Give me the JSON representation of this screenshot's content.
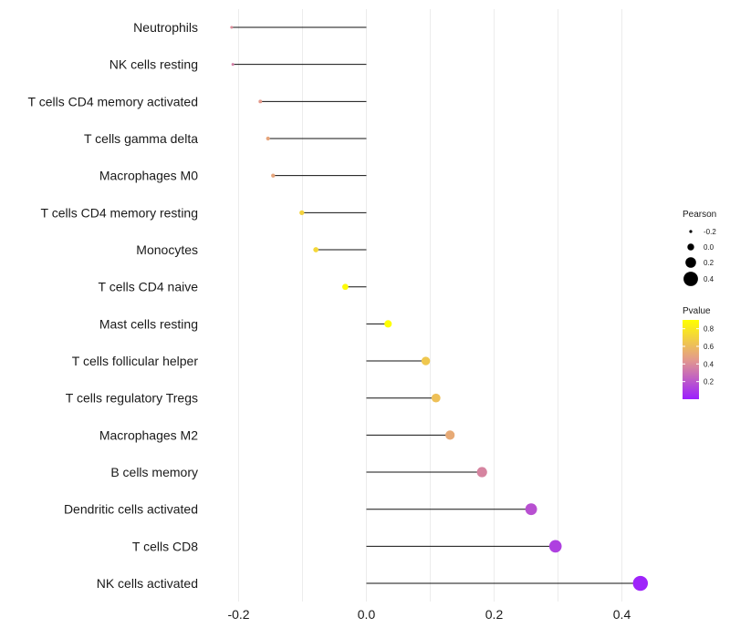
{
  "chart_data": {
    "type": "lollipop",
    "title": "",
    "xlabel": "",
    "ylabel": "",
    "xlim": [
      -0.245,
      0.455
    ],
    "x_ticks": [
      -0.2,
      0.0,
      0.2,
      0.4
    ],
    "x_tick_labels": [
      "-0.2",
      "0.0",
      "0.2",
      "0.4"
    ],
    "grid": true,
    "categories": [
      "Neutrophils",
      "NK cells resting",
      "T cells CD4 memory activated",
      "T cells gamma delta",
      "Macrophages M0",
      "T cells CD4 memory resting",
      "Monocytes",
      "T cells CD4 naive",
      "Mast cells resting",
      "T cells follicular helper",
      "T cells regulatory  Tregs ",
      "Macrophages M2",
      "B cells memory",
      "Dendritic cells activated",
      "T cells CD8",
      "NK cells activated"
    ],
    "pearson": [
      -0.211,
      -0.209,
      -0.166,
      -0.154,
      -0.146,
      -0.101,
      -0.079,
      -0.033,
      0.034,
      0.093,
      0.109,
      0.131,
      0.181,
      0.258,
      0.296,
      0.429
    ],
    "pvalue": [
      0.4,
      0.35,
      0.45,
      0.5,
      0.5,
      0.7,
      0.72,
      0.88,
      0.9,
      0.65,
      0.62,
      0.52,
      0.37,
      0.18,
      0.12,
      0.02
    ],
    "legend_size": {
      "title": "Pearson",
      "values": [
        -0.2,
        0.0,
        0.2,
        0.4
      ],
      "labels": [
        "-0.2",
        "0.0",
        "0.2",
        "0.4"
      ]
    },
    "legend_color": {
      "title": "Pvalue",
      "values": [
        0.8,
        0.6,
        0.4,
        0.2
      ],
      "labels": [
        "0.8",
        "0.6",
        "0.4",
        "0.2"
      ],
      "range": [
        0.0,
        0.9
      ],
      "color_low": "#9b1fff",
      "color_mid": "#e39a8c",
      "color_high": "#ffff00"
    },
    "legend_position": "right"
  }
}
